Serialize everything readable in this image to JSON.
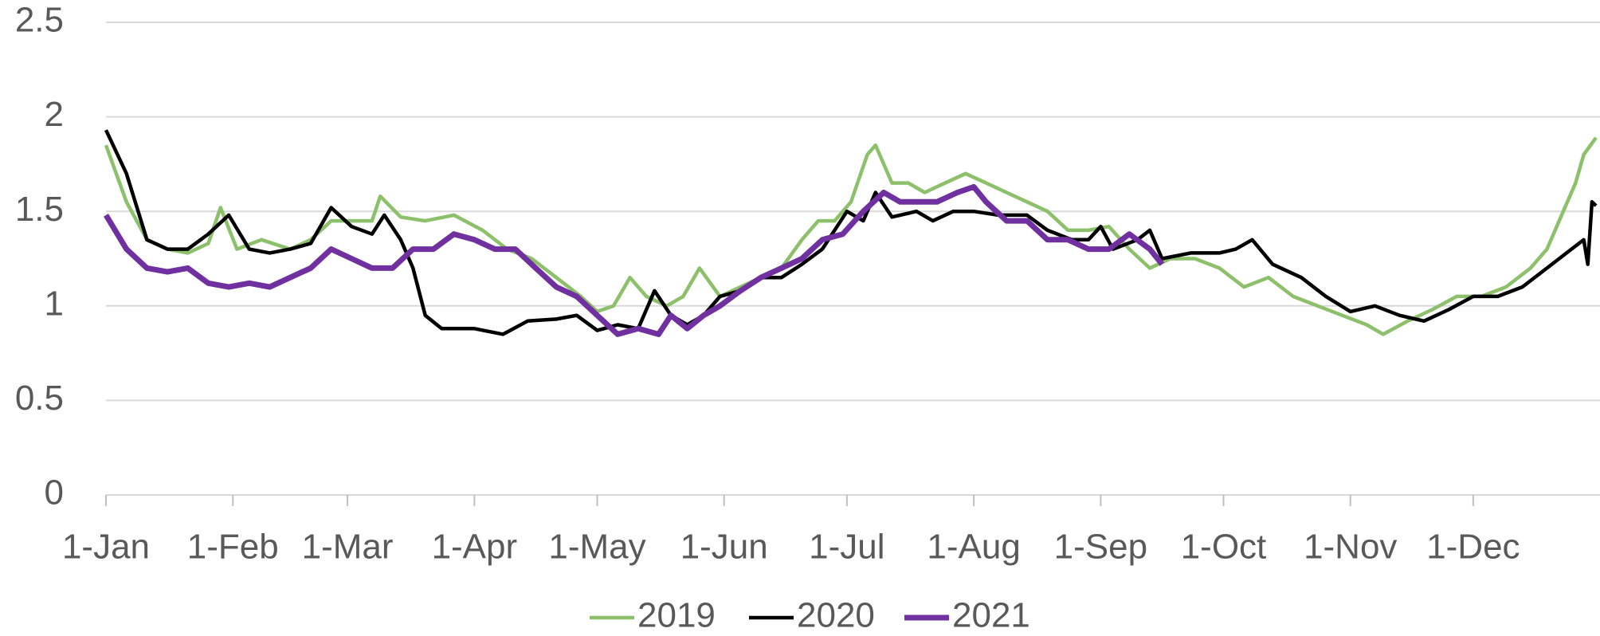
{
  "chart_data": {
    "type": "line",
    "xlim": [
      0,
      364
    ],
    "xticks": [
      {
        "value": 0,
        "label": "1-Jan"
      },
      {
        "value": 31,
        "label": "1-Feb"
      },
      {
        "value": 59,
        "label": "1-Mar"
      },
      {
        "value": 90,
        "label": "1-Apr"
      },
      {
        "value": 120,
        "label": "1-May"
      },
      {
        "value": 151,
        "label": "1-Jun"
      },
      {
        "value": 181,
        "label": "1-Jul"
      },
      {
        "value": 212,
        "label": "1-Aug"
      },
      {
        "value": 243,
        "label": "1-Sep"
      },
      {
        "value": 273,
        "label": "1-Oct"
      },
      {
        "value": 304,
        "label": "1-Nov"
      },
      {
        "value": 334,
        "label": "1-Dec"
      }
    ],
    "ylim": [
      0,
      2.5
    ],
    "yticks": [
      0,
      0.5,
      1,
      1.5,
      2,
      2.5
    ],
    "grid": true,
    "legend": "bottom",
    "series": [
      {
        "name": "2019",
        "color": "#8cc06b",
        "x": [
          0,
          5,
          10,
          15,
          20,
          25,
          28,
          32,
          38,
          45,
          50,
          55,
          60,
          65,
          67,
          72,
          78,
          85,
          92,
          98,
          104,
          110,
          116,
          120,
          124,
          128,
          132,
          137,
          141,
          145,
          150,
          155,
          160,
          165,
          170,
          174,
          178,
          182,
          186,
          188,
          192,
          196,
          200,
          205,
          210,
          215,
          220,
          225,
          230,
          235,
          240,
          245,
          250,
          255,
          260,
          266,
          272,
          278,
          284,
          290,
          296,
          302,
          308,
          312,
          318,
          324,
          330,
          336,
          342,
          348,
          352,
          356,
          359,
          361,
          364
        ],
        "values": [
          1.85,
          1.55,
          1.35,
          1.3,
          1.28,
          1.33,
          1.52,
          1.3,
          1.35,
          1.3,
          1.35,
          1.45,
          1.45,
          1.45,
          1.58,
          1.47,
          1.45,
          1.48,
          1.4,
          1.3,
          1.25,
          1.15,
          1.05,
          0.97,
          1.0,
          1.15,
          1.05,
          1.0,
          1.05,
          1.2,
          1.05,
          1.1,
          1.15,
          1.2,
          1.35,
          1.45,
          1.45,
          1.55,
          1.8,
          1.85,
          1.65,
          1.65,
          1.6,
          1.65,
          1.7,
          1.65,
          1.6,
          1.55,
          1.5,
          1.4,
          1.4,
          1.42,
          1.3,
          1.2,
          1.25,
          1.25,
          1.2,
          1.1,
          1.15,
          1.05,
          1.0,
          0.95,
          0.9,
          0.85,
          0.92,
          0.98,
          1.05,
          1.05,
          1.1,
          1.2,
          1.3,
          1.5,
          1.65,
          1.8,
          1.89
        ]
      },
      {
        "name": "2020",
        "color": "#000000",
        "x": [
          0,
          5,
          10,
          15,
          20,
          25,
          30,
          35,
          40,
          45,
          50,
          55,
          60,
          65,
          68,
          72,
          75,
          78,
          82,
          90,
          97,
          103,
          110,
          115,
          120,
          125,
          130,
          134,
          138,
          142,
          146,
          150,
          155,
          160,
          165,
          170,
          175,
          181,
          185,
          188,
          192,
          198,
          202,
          207,
          212,
          218,
          225,
          230,
          236,
          240,
          243,
          246,
          252,
          255,
          258,
          265,
          272,
          276,
          280,
          285,
          292,
          298,
          304,
          310,
          316,
          322,
          328,
          334,
          340,
          346,
          352,
          358,
          361,
          362,
          363,
          364
        ],
        "values": [
          1.93,
          1.7,
          1.35,
          1.3,
          1.3,
          1.38,
          1.48,
          1.3,
          1.28,
          1.3,
          1.33,
          1.52,
          1.42,
          1.38,
          1.48,
          1.35,
          1.2,
          0.95,
          0.88,
          0.88,
          0.85,
          0.92,
          0.93,
          0.95,
          0.87,
          0.9,
          0.88,
          1.08,
          0.95,
          0.9,
          0.95,
          1.05,
          1.08,
          1.15,
          1.15,
          1.22,
          1.3,
          1.5,
          1.45,
          1.6,
          1.47,
          1.5,
          1.45,
          1.5,
          1.5,
          1.48,
          1.48,
          1.4,
          1.35,
          1.35,
          1.42,
          1.3,
          1.35,
          1.4,
          1.25,
          1.28,
          1.28,
          1.3,
          1.35,
          1.22,
          1.15,
          1.05,
          0.97,
          1.0,
          0.95,
          0.92,
          0.98,
          1.05,
          1.05,
          1.1,
          1.2,
          1.3,
          1.35,
          1.22,
          1.55,
          1.53
        ]
      },
      {
        "name": "2021",
        "color": "#7030a0",
        "x": [
          0,
          5,
          10,
          15,
          20,
          25,
          30,
          35,
          40,
          45,
          50,
          55,
          60,
          65,
          70,
          75,
          80,
          85,
          90,
          95,
          100,
          105,
          110,
          115,
          120,
          125,
          130,
          135,
          138,
          142,
          146,
          150,
          155,
          160,
          165,
          170,
          175,
          180,
          185,
          190,
          194,
          198,
          203,
          208,
          212,
          215,
          220,
          225,
          230,
          235,
          240,
          245,
          250,
          255,
          258
        ],
        "values": [
          1.48,
          1.3,
          1.2,
          1.18,
          1.2,
          1.12,
          1.1,
          1.12,
          1.1,
          1.15,
          1.2,
          1.3,
          1.25,
          1.2,
          1.2,
          1.3,
          1.3,
          1.38,
          1.35,
          1.3,
          1.3,
          1.2,
          1.1,
          1.05,
          0.95,
          0.85,
          0.88,
          0.85,
          0.95,
          0.88,
          0.95,
          1.0,
          1.08,
          1.15,
          1.2,
          1.25,
          1.35,
          1.38,
          1.5,
          1.6,
          1.55,
          1.55,
          1.55,
          1.6,
          1.63,
          1.55,
          1.45,
          1.45,
          1.35,
          1.35,
          1.3,
          1.3,
          1.38,
          1.3,
          1.22
        ]
      }
    ]
  }
}
